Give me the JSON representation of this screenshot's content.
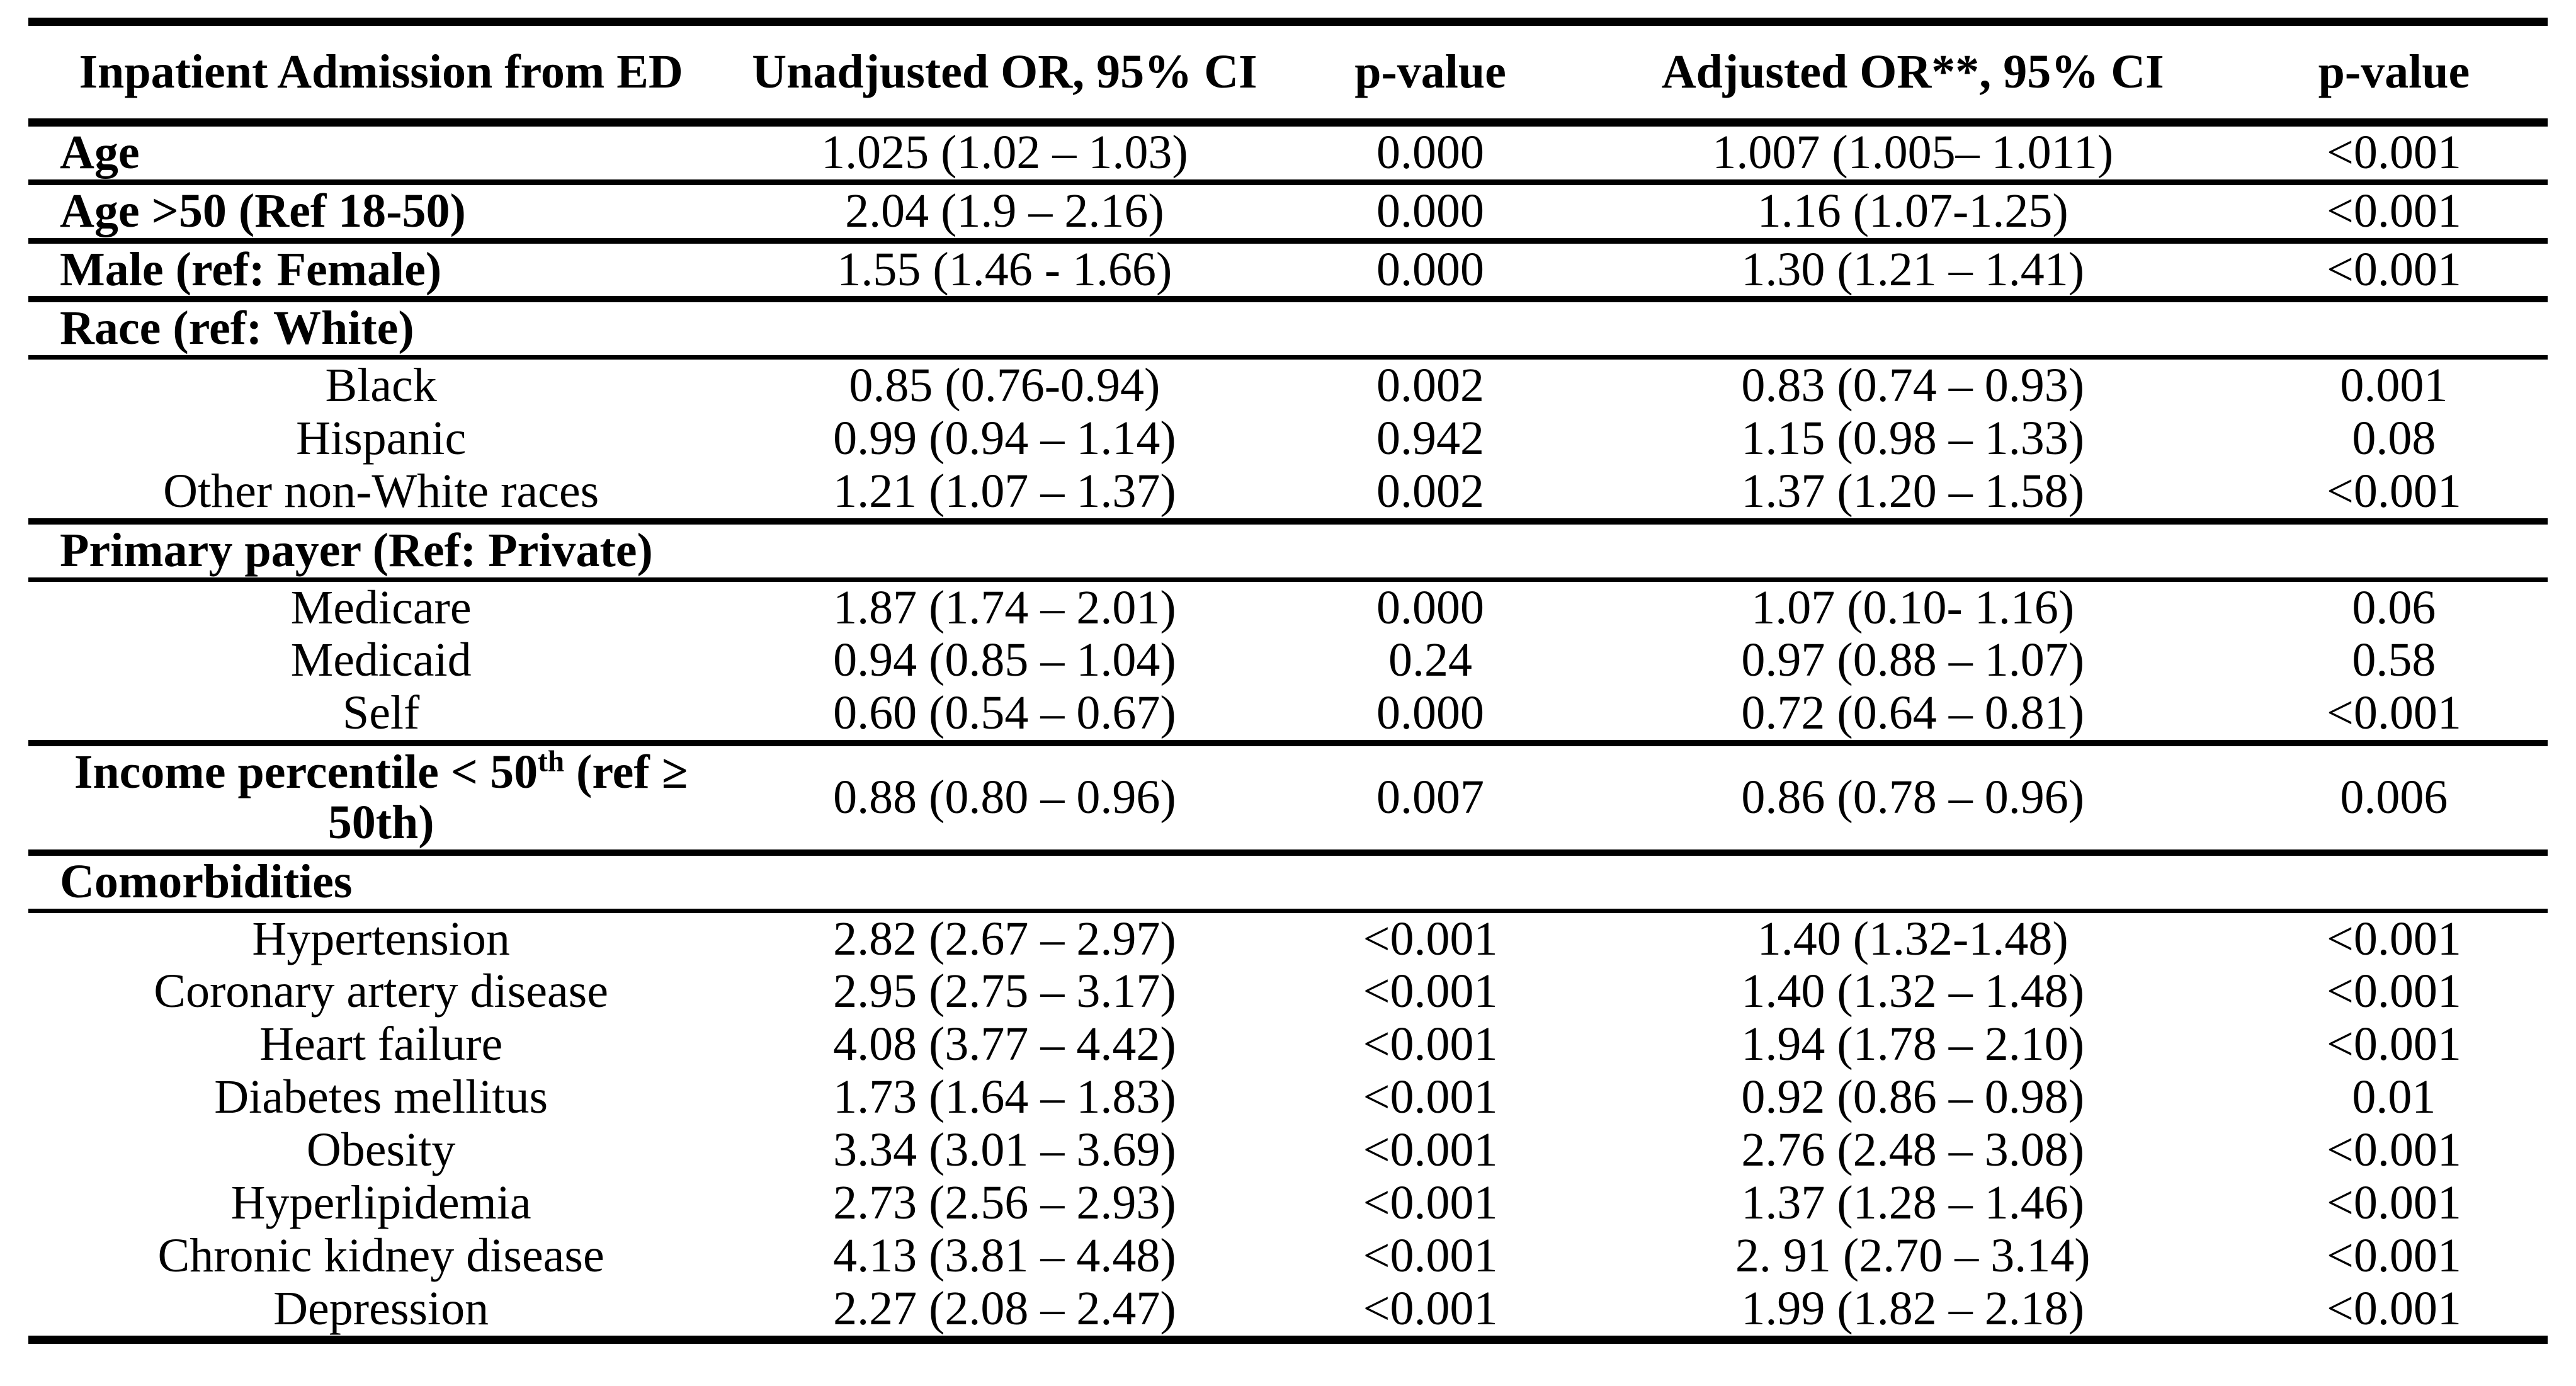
{
  "table": {
    "columns": [
      {
        "label": "Inpatient Admission from ED"
      },
      {
        "label": "Unadjusted OR, 95% CI"
      },
      {
        "label": "p-value"
      },
      {
        "label": "Adjusted OR**, 95% CI"
      },
      {
        "label": "p-value"
      }
    ],
    "rows": [
      {
        "label": "Age",
        "cells": [
          "1.025 (1.02 – 1.03)",
          "0.000",
          "1.007 (1.005– 1.011)",
          "<0.001"
        ]
      },
      {
        "label": "Age >50 (Ref 18-50)",
        "cells": [
          "2.04 (1.9 – 2.16)",
          "0.000",
          "1.16 (1.07-1.25)",
          "<0.001"
        ]
      },
      {
        "label": "Male (ref: Female)",
        "cells": [
          "1.55 (1.46 - 1.66)",
          "0.000",
          "1.30 (1.21 – 1.41)",
          "<0.001"
        ]
      },
      {
        "label": "Race (ref: White)",
        "cells": [
          "",
          "",
          "",
          ""
        ]
      },
      {
        "label": "Black",
        "cells": [
          "0.85 (0.76-0.94)",
          "0.002",
          "0.83 (0.74 – 0.93)",
          "0.001"
        ]
      },
      {
        "label": "Hispanic",
        "cells": [
          "0.99 (0.94 – 1.14)",
          "0.942",
          "1.15 (0.98 – 1.33)",
          "0.08"
        ]
      },
      {
        "label": "Other non-White races",
        "cells": [
          "1.21 (1.07 – 1.37)",
          "0.002",
          "1.37 (1.20 – 1.58)",
          "<0.001"
        ]
      },
      {
        "label": "Primary payer (Ref: Private)",
        "cells": [
          "",
          "",
          "",
          ""
        ]
      },
      {
        "label": "Medicare",
        "cells": [
          "1.87 (1.74 – 2.01)",
          "0.000",
          "1.07 (0.10- 1.16)",
          "0.06"
        ]
      },
      {
        "label": "Medicaid",
        "cells": [
          "0.94 (0.85 – 1.04)",
          "0.24",
          "0.97 (0.88 – 1.07)",
          "0.58"
        ]
      },
      {
        "label": "Self",
        "cells": [
          "0.60 (0.54 – 0.67)",
          "0.000",
          "0.72 (0.64 – 0.81)",
          "<0.001"
        ]
      },
      {
        "label": "Income percentile < 50th (ref ≥ 50th)",
        "label_parts": [
          {
            "t": "Income percentile < 50"
          },
          {
            "t": "th",
            "sup": true
          },
          {
            "t": " (ref ≥ 50th)"
          }
        ],
        "cells": [
          "0.88 (0.80 – 0.96)",
          "0.007",
          "0.86 (0.78 – 0.96)",
          "0.006"
        ]
      },
      {
        "label": "Comorbidities",
        "cells": [
          "",
          "",
          "",
          ""
        ]
      },
      {
        "label": "Hypertension",
        "cells": [
          "2.82 (2.67 – 2.97)",
          "<0.001",
          "1.40 (1.32-1.48)",
          "<0.001"
        ]
      },
      {
        "label": "Coronary artery disease",
        "cells": [
          "2.95 (2.75 – 3.17)",
          "<0.001",
          "1.40 (1.32 – 1.48)",
          "<0.001"
        ]
      },
      {
        "label": "Heart failure",
        "cells": [
          "4.08 (3.77 – 4.42)",
          "<0.001",
          "1.94 (1.78 – 2.10)",
          "<0.001"
        ]
      },
      {
        "label": "Diabetes mellitus",
        "cells": [
          "1.73 (1.64 – 1.83)",
          "<0.001",
          "0.92 (0.86 – 0.98)",
          "0.01"
        ]
      },
      {
        "label": "Obesity",
        "cells": [
          "3.34 (3.01 – 3.69)",
          "<0.001",
          "2.76 (2.48 – 3.08)",
          "<0.001"
        ]
      },
      {
        "label": "Hyperlipidemia",
        "cells": [
          "2.73 (2.56 – 2.93)",
          "<0.001",
          "1.37 (1.28 – 1.46)",
          "<0.001"
        ]
      },
      {
        "label": "Chronic kidney disease",
        "cells": [
          "4.13 (3.81 – 4.48)",
          "<0.001",
          "2. 91 (2.70 – 3.14)",
          "<0.001"
        ]
      },
      {
        "label": "Depression",
        "cells": [
          "2.27 (2.08 – 2.47)",
          "<0.001",
          "1.99 (1.82 – 2.18)",
          "<0.001"
        ]
      }
    ]
  }
}
